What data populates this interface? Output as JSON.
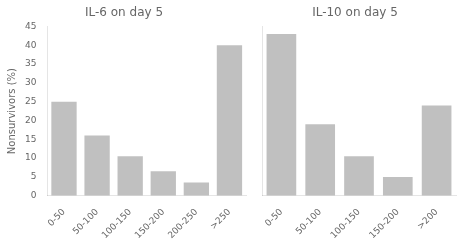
{
  "chart_data": [
    {
      "type": "bar",
      "title": "IL-6 on day 5",
      "ylabel": "Nonsurvivors (%)",
      "categories": [
        "0-50",
        "50-100",
        "100-150",
        "150-200",
        "200-250",
        ">250"
      ],
      "values": [
        25,
        16,
        10.5,
        6.5,
        3.5,
        40
      ],
      "color": "#c0c0c0",
      "ylim": [
        0,
        45
      ],
      "yticks": [
        0,
        5,
        10,
        15,
        20,
        25,
        30,
        35,
        40,
        45
      ],
      "grid": false
    },
    {
      "type": "bar",
      "title": "IL-10 on day 5",
      "categories": [
        "0-50",
        "50-100",
        "100-150",
        "150-200",
        ">200"
      ],
      "values": [
        43,
        19,
        10.5,
        5,
        24
      ],
      "color": "#c0c0c0",
      "ylim": [
        0,
        45
      ],
      "yticks": [
        0,
        5,
        10,
        15,
        20,
        25,
        30,
        35,
        40,
        45
      ],
      "grid": false,
      "tick_labels": "x"
    }
  ]
}
